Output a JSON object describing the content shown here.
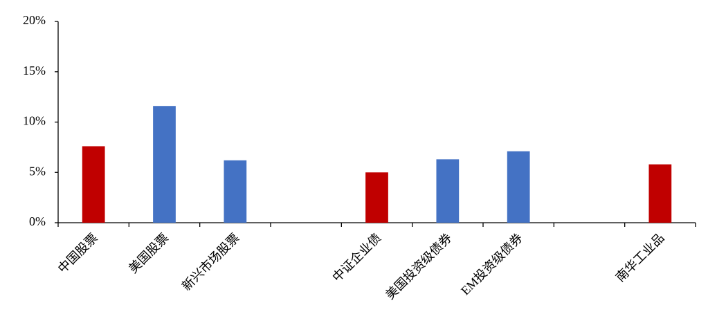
{
  "chart_data": {
    "type": "bar",
    "categories": [
      "中国股票",
      "美国股票",
      "新兴市场股票",
      null,
      "中证企业债",
      "美国投资级债券",
      "EM投资级债券",
      null,
      "南华工业品"
    ],
    "values": [
      7.6,
      11.6,
      6.2,
      null,
      5.0,
      6.3,
      7.1,
      null,
      5.8
    ],
    "colors": [
      "#c00000",
      "#4472c4",
      "#4472c4",
      null,
      "#c00000",
      "#4472c4",
      "#4472c4",
      null,
      "#c00000"
    ],
    "ylim": [
      0,
      20
    ],
    "yticks": [
      {
        "value": 0,
        "label": "0%"
      },
      {
        "value": 5,
        "label": "5%"
      },
      {
        "value": 10,
        "label": "10%"
      },
      {
        "value": 15,
        "label": "15%"
      },
      {
        "value": 20,
        "label": "20%"
      }
    ],
    "grid": false
  }
}
